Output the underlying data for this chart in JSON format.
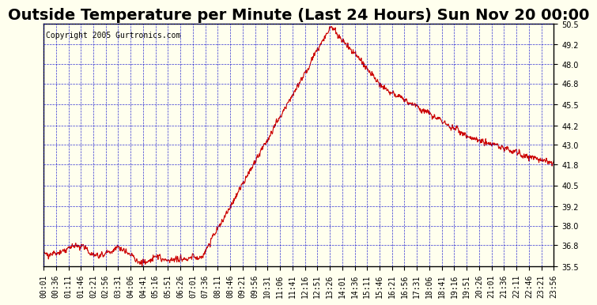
{
  "title": "Outside Temperature per Minute (Last 24 Hours) Sun Nov 20 00:00",
  "copyright": "Copyright 2005 Gurtronics.com",
  "line_color": "#cc0000",
  "background_color": "#ffffee",
  "grid_color": "#0000cc",
  "border_color": "#000000",
  "title_color": "#000000",
  "ylabel_color": "#000000",
  "ylim": [
    35.5,
    50.5
  ],
  "yticks": [
    35.5,
    36.8,
    38.0,
    39.2,
    40.5,
    41.8,
    43.0,
    44.2,
    45.5,
    46.8,
    48.0,
    49.2,
    50.5
  ],
  "xtick_labels": [
    "00:01",
    "00:36",
    "01:11",
    "01:46",
    "02:21",
    "02:56",
    "03:31",
    "04:06",
    "04:41",
    "05:16",
    "05:51",
    "06:26",
    "07:01",
    "07:36",
    "08:11",
    "08:46",
    "09:21",
    "09:56",
    "10:31",
    "11:06",
    "11:41",
    "12:16",
    "12:51",
    "13:26",
    "14:01",
    "14:36",
    "15:11",
    "15:46",
    "16:21",
    "16:56",
    "17:31",
    "18:06",
    "18:41",
    "19:16",
    "19:51",
    "20:26",
    "21:01",
    "21:36",
    "22:11",
    "22:46",
    "23:21",
    "23:56"
  ],
  "title_fontsize": 14,
  "tick_fontsize": 7,
  "copyright_fontsize": 7
}
